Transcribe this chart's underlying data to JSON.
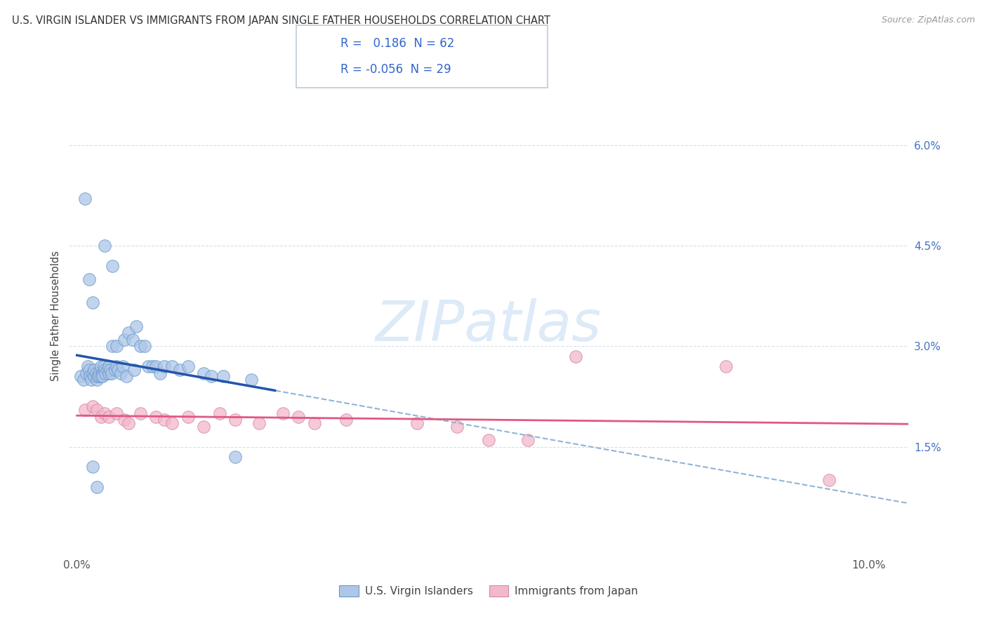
{
  "title": "U.S. VIRGIN ISLANDER VS IMMIGRANTS FROM JAPAN SINGLE FATHER HOUSEHOLDS CORRELATION CHART",
  "source": "Source: ZipAtlas.com",
  "ylabel": "Single Father Households",
  "blue_label": "U.S. Virgin Islanders",
  "pink_label": "Immigrants from Japan",
  "blue_R": " 0.186",
  "blue_N": "62",
  "pink_R": "-0.056",
  "pink_N": "29",
  "blue_color": "#aec6e8",
  "blue_edge_color": "#6699cc",
  "blue_line_color": "#2255aa",
  "blue_dash_color": "#90b4d8",
  "pink_color": "#f4b8cb",
  "pink_edge_color": "#d088a8",
  "pink_line_color": "#e05880",
  "watermark_color": "#ddeaf8",
  "grid_color": "#d8dde8",
  "ytick_color": "#4472c4",
  "background_color": "#ffffff",
  "blue_x": [
    0.05,
    0.08,
    0.1,
    0.12,
    0.14,
    0.15,
    0.16,
    0.18,
    0.2,
    0.2,
    0.22,
    0.22,
    0.24,
    0.25,
    0.26,
    0.28,
    0.28,
    0.3,
    0.3,
    0.32,
    0.32,
    0.34,
    0.35,
    0.36,
    0.38,
    0.4,
    0.4,
    0.42,
    0.44,
    0.45,
    0.48,
    0.5,
    0.5,
    0.52,
    0.55,
    0.58,
    0.6,
    0.62,
    0.65,
    0.7,
    0.72,
    0.75,
    0.8,
    0.85,
    0.9,
    0.95,
    1.0,
    1.05,
    1.1,
    1.2,
    1.3,
    1.4,
    1.6,
    1.7,
    1.85,
    2.0,
    2.2,
    0.2,
    0.25,
    0.35,
    0.45,
    0.15
  ],
  "blue_y": [
    2.55,
    2.5,
    5.2,
    2.6,
    2.7,
    2.65,
    2.55,
    2.5,
    2.6,
    3.65,
    2.55,
    2.65,
    2.6,
    2.5,
    2.55,
    2.6,
    2.55,
    2.7,
    2.55,
    2.6,
    2.55,
    2.7,
    2.65,
    2.6,
    2.65,
    2.7,
    2.6,
    2.65,
    2.6,
    3.0,
    2.65,
    2.7,
    3.0,
    2.65,
    2.6,
    2.7,
    3.1,
    2.55,
    3.2,
    3.1,
    2.65,
    3.3,
    3.0,
    3.0,
    2.7,
    2.7,
    2.7,
    2.6,
    2.7,
    2.7,
    2.65,
    2.7,
    2.6,
    2.55,
    2.55,
    1.35,
    2.5,
    1.2,
    0.9,
    4.5,
    4.2,
    4.0
  ],
  "pink_x": [
    0.1,
    0.2,
    0.25,
    0.3,
    0.35,
    0.4,
    0.5,
    0.6,
    0.65,
    0.8,
    1.0,
    1.1,
    1.2,
    1.4,
    1.6,
    1.8,
    2.0,
    2.3,
    2.6,
    2.8,
    3.0,
    3.4,
    4.3,
    4.8,
    5.2,
    5.7,
    6.3,
    8.2,
    9.5
  ],
  "pink_y": [
    2.05,
    2.1,
    2.05,
    1.95,
    2.0,
    1.95,
    2.0,
    1.9,
    1.85,
    2.0,
    1.95,
    1.9,
    1.85,
    1.95,
    1.8,
    2.0,
    1.9,
    1.85,
    2.0,
    1.95,
    1.85,
    1.9,
    1.85,
    1.8,
    1.6,
    1.6,
    2.85,
    2.7,
    1.0
  ]
}
